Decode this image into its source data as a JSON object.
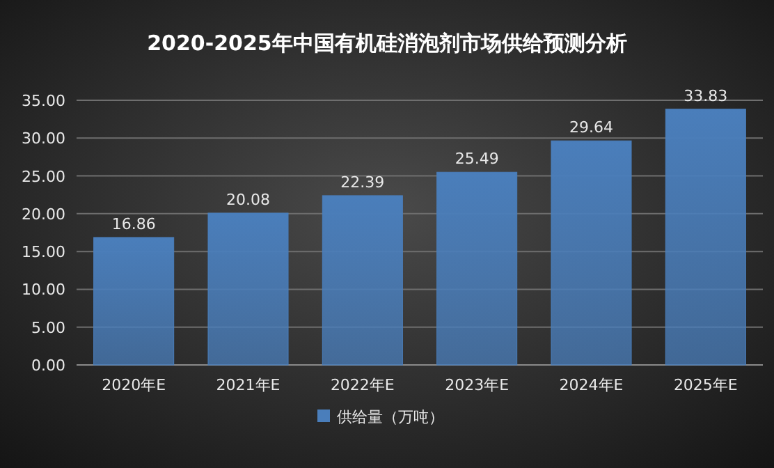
{
  "chart_data": {
    "type": "bar",
    "title": "2020-2025年中国有机硅消泡剂市场供给预测分析",
    "categories": [
      "2020年E",
      "2021年E",
      "2022年E",
      "2023年E",
      "2024年E",
      "2025年E"
    ],
    "series": [
      {
        "name": "供给量（万吨）",
        "color": "#4a7ebb",
        "values": [
          16.86,
          20.08,
          22.39,
          25.49,
          29.64,
          33.83
        ]
      }
    ],
    "ylim": [
      0,
      35
    ],
    "yticks": [
      {
        "value": 0,
        "label": "0.00"
      },
      {
        "value": 5,
        "label": "5.00"
      },
      {
        "value": 10,
        "label": "10.00"
      },
      {
        "value": 15,
        "label": "15.00"
      },
      {
        "value": 20,
        "label": "20.00"
      },
      {
        "value": 25,
        "label": "25.00"
      },
      {
        "value": 30,
        "label": "30.00"
      },
      {
        "value": 35,
        "label": "35.00"
      }
    ],
    "grid": "y",
    "legend": "bottom",
    "data_labels": true
  }
}
